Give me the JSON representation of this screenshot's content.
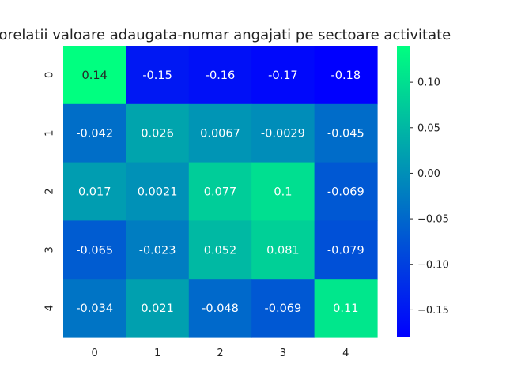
{
  "chart_data": {
    "type": "heatmap",
    "title": "Corelatii valoare adaugata-numar angajati pe sectoare activitate",
    "x_labels": [
      "0",
      "1",
      "2",
      "3",
      "4"
    ],
    "y_labels": [
      "0",
      "1",
      "2",
      "3",
      "4"
    ],
    "values": [
      [
        0.14,
        -0.15,
        -0.16,
        -0.17,
        -0.18
      ],
      [
        -0.042,
        0.026,
        0.0067,
        -0.0029,
        -0.045
      ],
      [
        0.017,
        0.0021,
        0.077,
        0.1,
        -0.069
      ],
      [
        -0.065,
        -0.023,
        0.052,
        0.081,
        -0.079
      ],
      [
        -0.034,
        0.021,
        -0.048,
        -0.069,
        0.11
      ]
    ],
    "annotations": [
      [
        "0.14",
        "-0.15",
        "-0.16",
        "-0.17",
        "-0.18"
      ],
      [
        "-0.042",
        "0.026",
        "0.0067",
        "-0.0029",
        "-0.045"
      ],
      [
        "0.017",
        "0.0021",
        "0.077",
        "0.1",
        "-0.069"
      ],
      [
        "-0.065",
        "-0.023",
        "0.052",
        "0.081",
        "-0.079"
      ],
      [
        "-0.034",
        "0.021",
        "-0.048",
        "-0.069",
        "0.11"
      ]
    ],
    "colormap": "winter",
    "colormap_start": "#0000ff",
    "colormap_end": "#00ff80",
    "vmin": -0.18,
    "vmax": 0.14,
    "colorbar_ticks": [
      "0.10",
      "0.05",
      "0.00",
      "−0.05",
      "−0.10",
      "−0.15"
    ],
    "colorbar_tick_values": [
      0.1,
      0.05,
      0.0,
      -0.05,
      -0.1,
      -0.15
    ],
    "text_color_dark": "#262626",
    "text_color_light": "#ffffff"
  }
}
